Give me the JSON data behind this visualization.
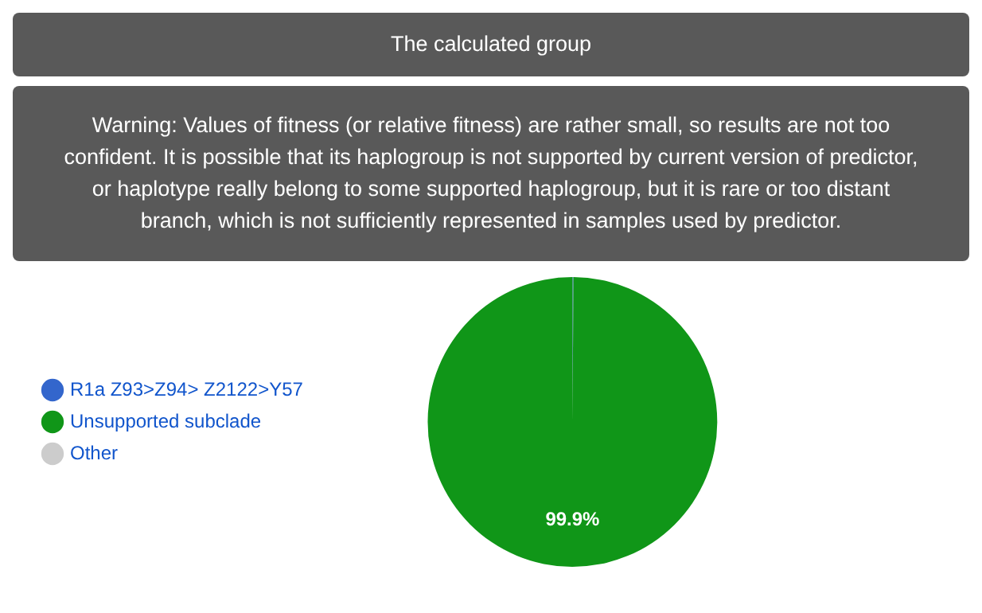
{
  "chart_data": {
    "type": "pie",
    "title": "The calculated group",
    "annotations": [
      "Warning: Values of fitness (or relative fitness) are rather small, so results are not too confident. It is possible that its haplogroup is not supported by current version of predictor, or haplotype really belong to some supported haplogroup, but it is rare or too distant branch, which is not sufficiently represented in samples used by predictor."
    ],
    "categories": [
      "R1a Z93>Z94> Z2122>Y57",
      "Unsupported subclade",
      "Other"
    ],
    "values": [
      0.1,
      99.9,
      0
    ],
    "value_labels": [
      null,
      "99.9%",
      null
    ],
    "colors": [
      "#3366cc",
      "#109618",
      "#cccccc"
    ],
    "legend": "left"
  }
}
